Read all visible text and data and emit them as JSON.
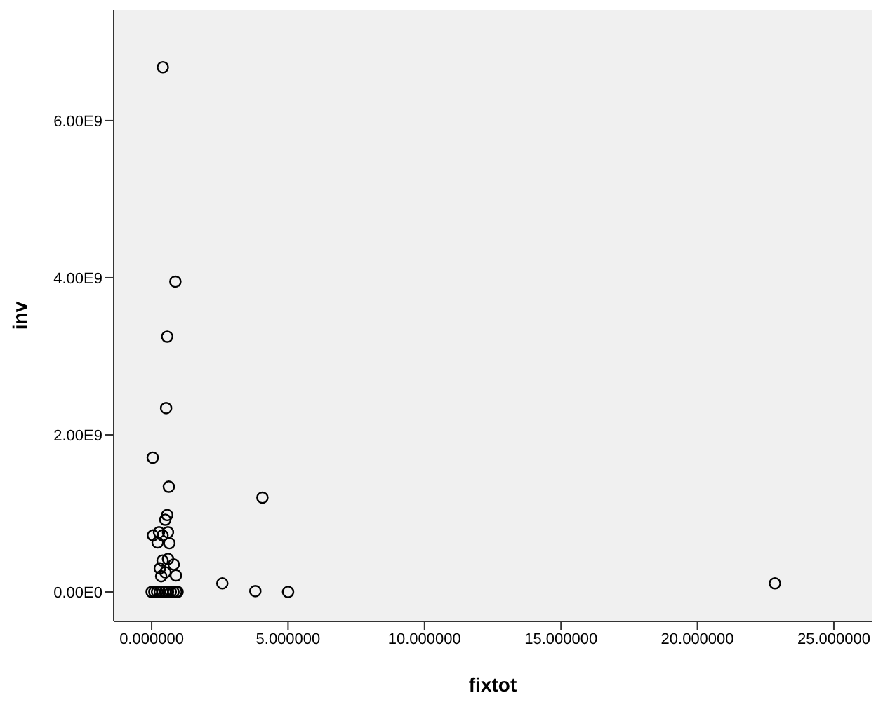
{
  "chart_data": {
    "type": "scatter",
    "xlabel": "fixtot",
    "ylabel": "inv",
    "x": [
      0.41,
      0.87,
      0.57,
      0.53,
      0.04,
      0.63,
      4.06,
      0.57,
      0.5,
      0.05,
      0.27,
      0.6,
      0.4,
      0.65,
      0.22,
      0.6,
      0.81,
      0.89,
      0.4,
      0.3,
      0.5,
      0.35,
      0.0,
      0.1,
      0.2,
      0.3,
      0.4,
      0.5,
      0.6,
      0.7,
      0.8,
      0.9,
      0.95,
      2.59,
      3.8,
      5.0,
      22.84
    ],
    "values": [
      6680000000,
      3950000000,
      3250000000,
      2340000000,
      1710000000,
      1340000000,
      1200000000,
      980000000,
      920000000,
      720000000,
      760000000,
      760000000,
      720000000,
      620000000,
      630000000,
      420000000,
      350000000,
      210000000,
      400000000,
      300000000,
      250000000,
      200000000,
      0,
      0,
      0,
      0,
      0,
      0,
      0,
      0,
      0,
      0,
      0,
      110000000,
      10000000,
      0,
      110000000
    ],
    "color": "#000000",
    "marker": "circle",
    "grid": false,
    "xlim": [
      -1.39,
      26.39
    ],
    "xticks": [
      {
        "value": 0,
        "label": "0.000000"
      },
      {
        "value": 5,
        "label": "5.000000"
      },
      {
        "value": 10,
        "label": "10.000000"
      },
      {
        "value": 15,
        "label": "15.000000"
      },
      {
        "value": 20,
        "label": "20.000000"
      },
      {
        "value": 25,
        "label": "25.000000"
      }
    ],
    "ylim": [
      -375000000,
      7410000000
    ],
    "yticks": [
      {
        "value": 0,
        "label": "0.00E0"
      },
      {
        "value": 2000000000,
        "label": "2.00E9"
      },
      {
        "value": 4000000000,
        "label": "4.00E9"
      },
      {
        "value": 6000000000,
        "label": "6.00E9"
      }
    ]
  }
}
